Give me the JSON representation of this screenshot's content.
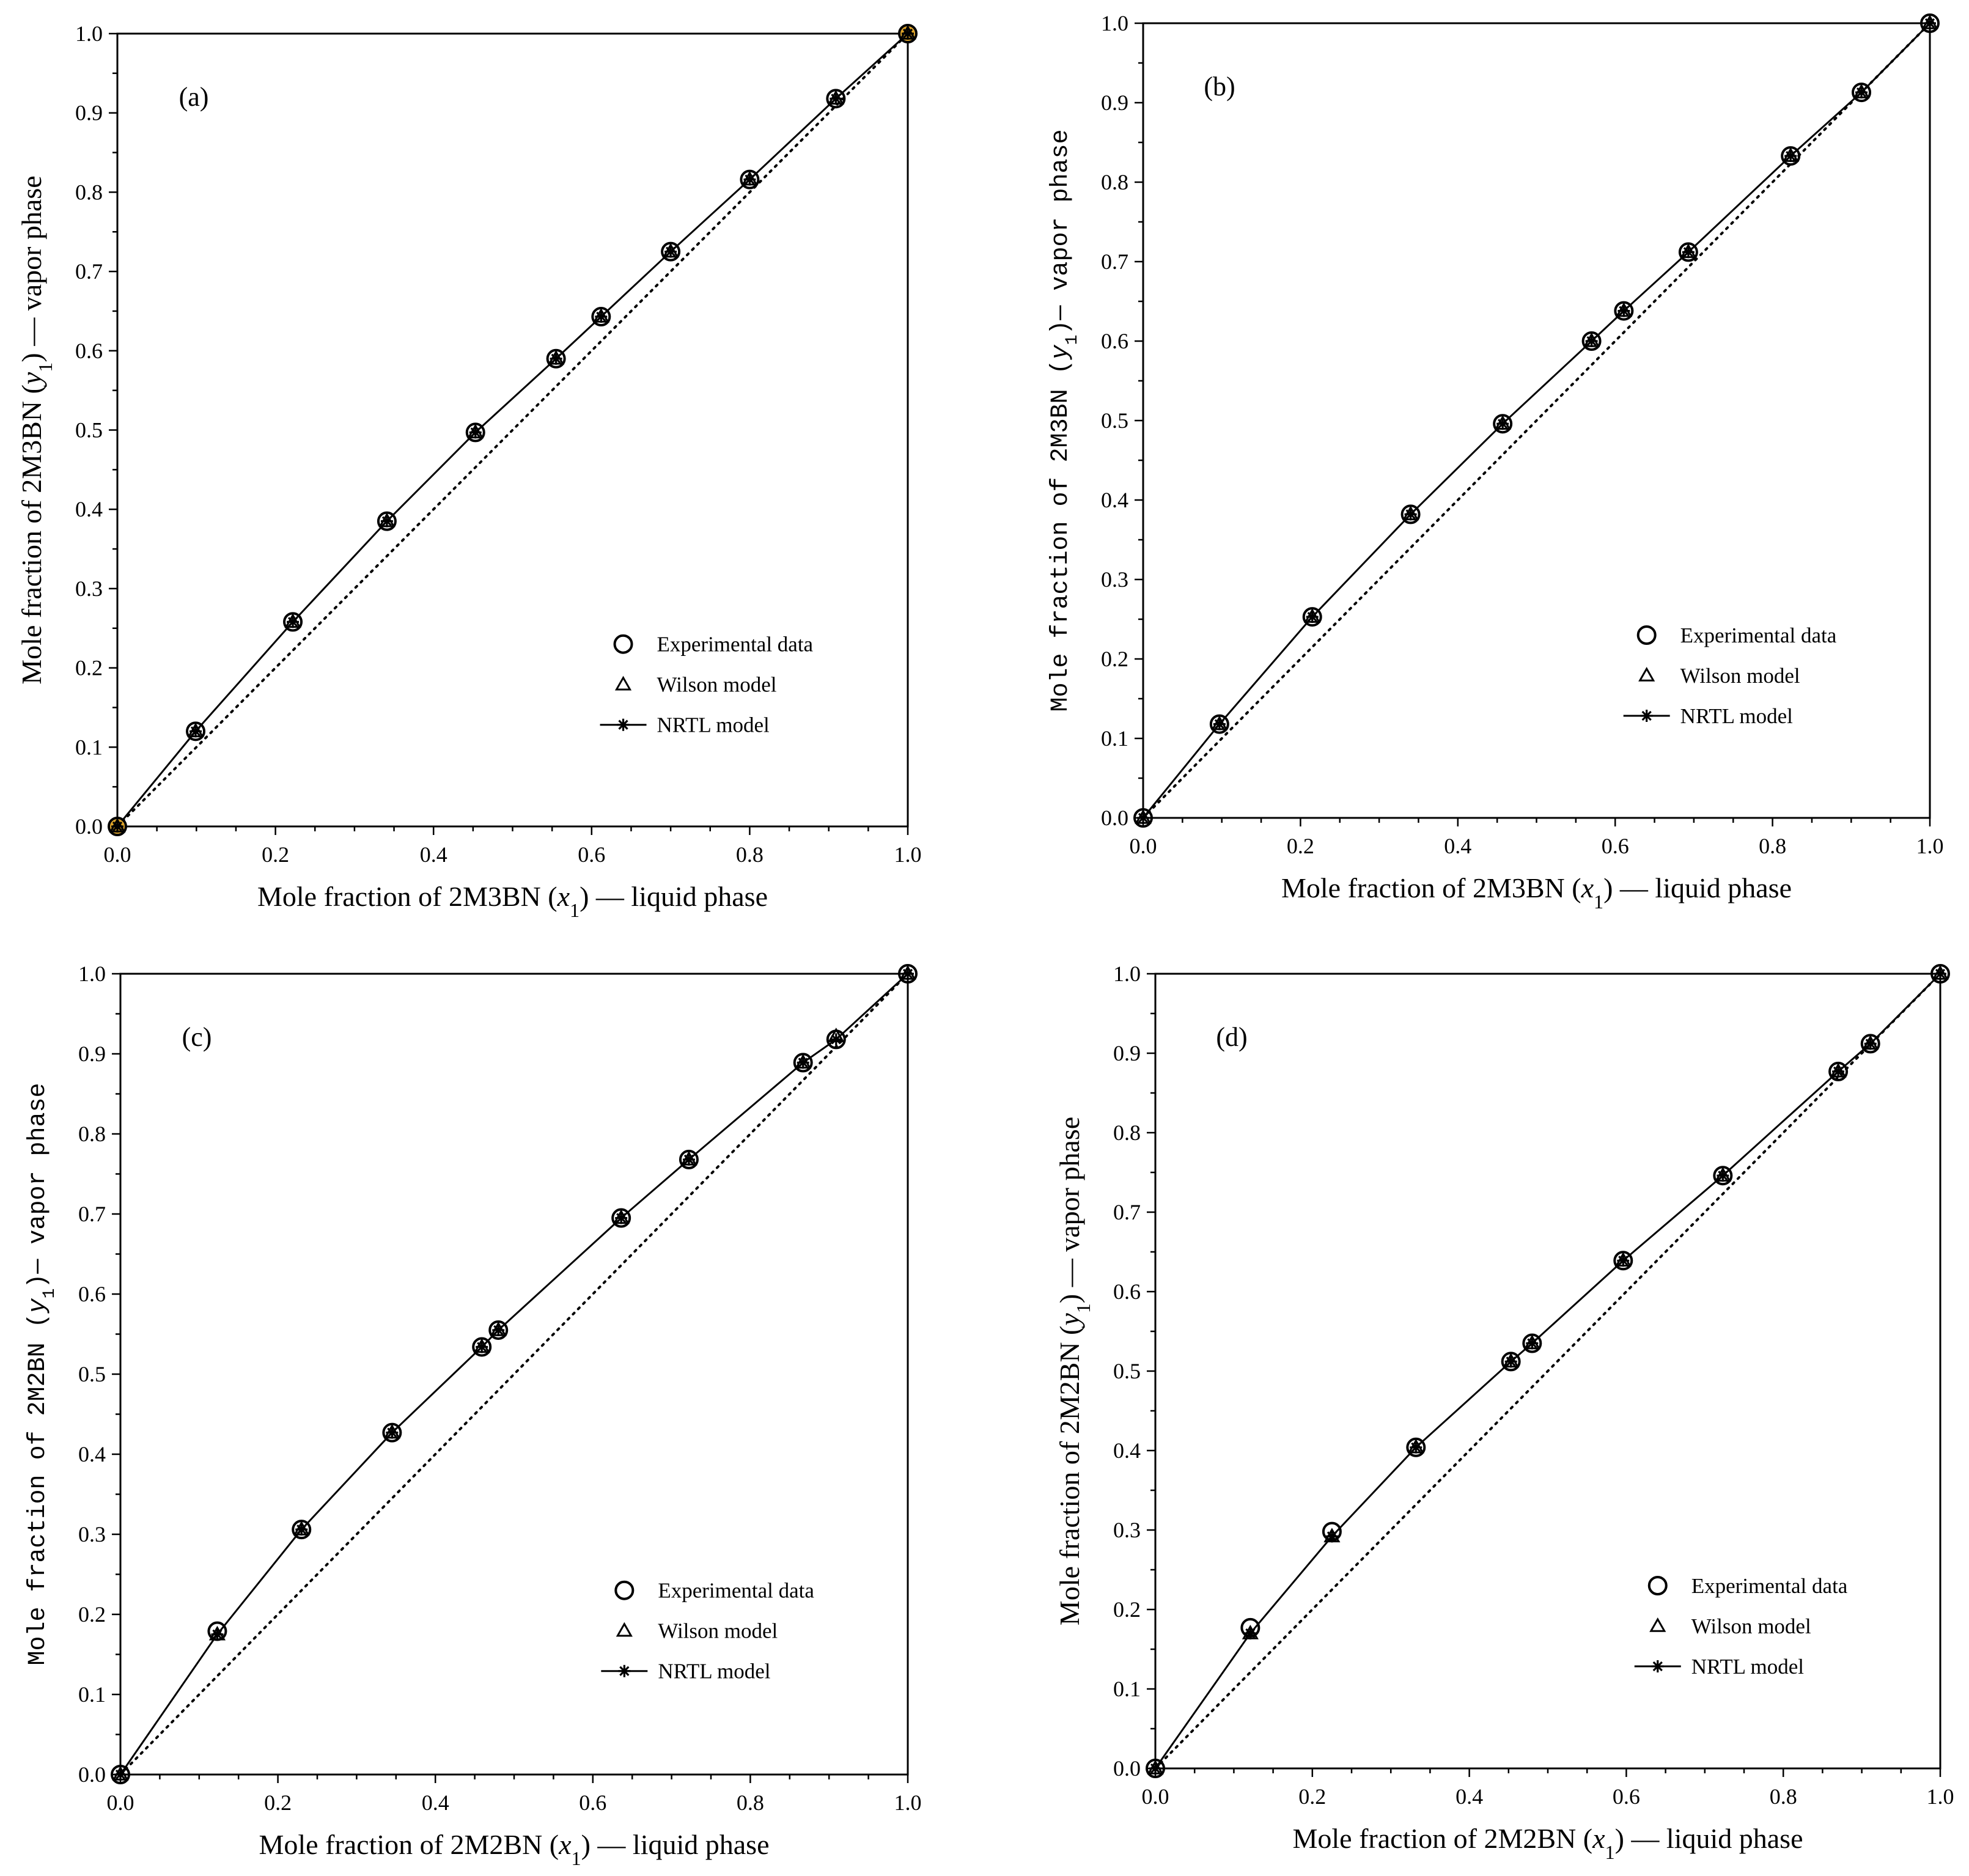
{
  "chart_data": [
    {
      "type": "scatter",
      "panel_label": "(a)",
      "title": "",
      "xlabel": {
        "prefix": "Mole fraction of 2M3BN (",
        "var": "x",
        "sub": "1",
        "suffix": ") — liquid phase"
      },
      "ylabel": {
        "prefix": "Mole fraction of 2M3BN (",
        "var": "y",
        "sub": "1",
        "suffix": ") — vapor phase",
        "mono": false
      },
      "xlim": [
        0,
        1
      ],
      "ylim": [
        0,
        1
      ],
      "xticks": [
        "0.0",
        "0.2",
        "0.4",
        "0.6",
        "0.8",
        "1.0"
      ],
      "yticks": [
        "0.0",
        "0.1",
        "0.2",
        "0.3",
        "0.4",
        "0.5",
        "0.6",
        "0.7",
        "0.8",
        "0.9",
        "1.0"
      ],
      "highlight_color": "#e0a528",
      "legend": [
        "Experimental data",
        "Wilson model",
        "NRTL model"
      ],
      "legend_position": "lower-right",
      "series": [
        {
          "name": "Experimental data",
          "x": [
            0.0,
            0.099,
            0.222,
            0.341,
            0.453,
            0.555,
            0.612,
            0.7,
            0.8,
            0.909,
            1.0
          ],
          "y": [
            0.0,
            0.12,
            0.258,
            0.385,
            0.497,
            0.59,
            0.643,
            0.725,
            0.816,
            0.918,
            1.0
          ]
        },
        {
          "name": "Wilson model",
          "x": [
            0.0,
            0.099,
            0.222,
            0.341,
            0.453,
            0.555,
            0.612,
            0.7,
            0.8,
            0.909,
            1.0
          ],
          "y": [
            0.0,
            0.12,
            0.258,
            0.385,
            0.497,
            0.59,
            0.643,
            0.725,
            0.816,
            0.918,
            1.0
          ]
        },
        {
          "name": "NRTL model",
          "x": [
            0.0,
            0.099,
            0.222,
            0.341,
            0.453,
            0.555,
            0.612,
            0.7,
            0.8,
            0.909,
            1.0
          ],
          "y": [
            0.0,
            0.12,
            0.258,
            0.385,
            0.497,
            0.59,
            0.643,
            0.725,
            0.816,
            0.918,
            1.0
          ]
        }
      ],
      "diagonal": {
        "x": [
          0,
          1
        ],
        "y": [
          0,
          1
        ],
        "style": "dotted"
      }
    },
    {
      "type": "scatter",
      "panel_label": "(b)",
      "title": "",
      "xlabel": {
        "prefix": "Mole fraction of 2M3BN (",
        "var": "x",
        "sub": "1",
        "suffix": ") — liquid phase"
      },
      "ylabel": {
        "prefix": "Mole fraction of 2M3BN (",
        "var": "y",
        "sub": "1",
        "suffix": ")— vapor phase",
        "mono": true
      },
      "xlim": [
        0,
        1
      ],
      "ylim": [
        0,
        1
      ],
      "xticks": [
        "0.0",
        "0.2",
        "0.4",
        "0.6",
        "0.8",
        "1.0"
      ],
      "yticks": [
        "0.0",
        "0.1",
        "0.2",
        "0.3",
        "0.4",
        "0.5",
        "0.6",
        "0.7",
        "0.8",
        "0.9",
        "1.0"
      ],
      "highlight_color": "",
      "legend": [
        "Experimental data",
        "Wilson model",
        "NRTL model"
      ],
      "legend_position": "lower-right",
      "series": [
        {
          "name": "Experimental data",
          "x": [
            0.0,
            0.097,
            0.215,
            0.34,
            0.457,
            0.57,
            0.611,
            0.693,
            0.823,
            0.913,
            1.0
          ],
          "y": [
            0.0,
            0.118,
            0.253,
            0.382,
            0.496,
            0.6,
            0.638,
            0.712,
            0.833,
            0.913,
            1.0
          ]
        },
        {
          "name": "Wilson model",
          "x": [
            0.0,
            0.097,
            0.215,
            0.34,
            0.457,
            0.57,
            0.611,
            0.693,
            0.823,
            0.913,
            1.0
          ],
          "y": [
            0.0,
            0.118,
            0.253,
            0.382,
            0.496,
            0.6,
            0.638,
            0.712,
            0.833,
            0.913,
            1.0
          ]
        },
        {
          "name": "NRTL model",
          "x": [
            0.0,
            0.097,
            0.215,
            0.34,
            0.457,
            0.57,
            0.611,
            0.693,
            0.823,
            0.913,
            1.0
          ],
          "y": [
            0.0,
            0.118,
            0.253,
            0.382,
            0.496,
            0.6,
            0.638,
            0.712,
            0.833,
            0.913,
            1.0
          ]
        }
      ],
      "diagonal": {
        "x": [
          0,
          1
        ],
        "y": [
          0,
          1
        ],
        "style": "dotted"
      }
    },
    {
      "type": "scatter",
      "panel_label": "(c)",
      "title": "",
      "xlabel": {
        "prefix": "Mole fraction of 2M2BN (",
        "var": "x",
        "sub": "1",
        "suffix": ") — liquid phase"
      },
      "ylabel": {
        "prefix": "Mole fraction of 2M2BN (",
        "var": "y",
        "sub": "1",
        "suffix": ")— vapor phase",
        "mono": true
      },
      "xlim": [
        0,
        1
      ],
      "ylim": [
        0,
        1
      ],
      "xticks": [
        "0.0",
        "0.2",
        "0.4",
        "0.6",
        "0.8",
        "1.0"
      ],
      "yticks": [
        "0.0",
        "0.1",
        "0.2",
        "0.3",
        "0.4",
        "0.5",
        "0.6",
        "0.7",
        "0.8",
        "0.9",
        "1.0"
      ],
      "highlight_color": "",
      "legend": [
        "Experimental data",
        "Wilson model",
        "NRTL model"
      ],
      "legend_position": "lower-right",
      "series": [
        {
          "name": "Experimental data",
          "x": [
            0.0,
            0.123,
            0.23,
            0.345,
            0.459,
            0.48,
            0.636,
            0.722,
            0.867,
            0.909,
            1.0
          ],
          "y": [
            0.0,
            0.179,
            0.306,
            0.427,
            0.534,
            0.555,
            0.695,
            0.768,
            0.889,
            0.918,
            1.0
          ]
        },
        {
          "name": "Wilson model",
          "x": [
            0.0,
            0.123,
            0.23,
            0.345,
            0.459,
            0.48,
            0.636,
            0.722,
            0.867,
            0.909,
            1.0
          ],
          "y": [
            0.0,
            0.175,
            0.306,
            0.427,
            0.534,
            0.555,
            0.695,
            0.768,
            0.889,
            0.922,
            1.0
          ]
        },
        {
          "name": "NRTL model",
          "x": [
            0.0,
            0.123,
            0.23,
            0.345,
            0.459,
            0.48,
            0.636,
            0.722,
            0.867,
            0.909,
            1.0
          ],
          "y": [
            0.0,
            0.175,
            0.306,
            0.427,
            0.534,
            0.555,
            0.695,
            0.768,
            0.889,
            0.918,
            1.0
          ]
        }
      ],
      "diagonal": {
        "x": [
          0,
          1
        ],
        "y": [
          0,
          1
        ],
        "style": "dotted"
      }
    },
    {
      "type": "scatter",
      "panel_label": "(d)",
      "title": "",
      "xlabel": {
        "prefix": "Mole fraction of 2M2BN (",
        "var": "x",
        "sub": "1",
        "suffix": ") — liquid phase"
      },
      "ylabel": {
        "prefix": "Mole fraction of 2M2BN (",
        "var": "y",
        "sub": "1",
        "suffix": ") — vapor phase",
        "mono": false
      },
      "xlim": [
        0,
        1
      ],
      "ylim": [
        0,
        1
      ],
      "xticks": [
        "0.0",
        "0.2",
        "0.4",
        "0.6",
        "0.8",
        "1.0"
      ],
      "yticks": [
        "0.0",
        "0.1",
        "0.2",
        "0.3",
        "0.4",
        "0.5",
        "0.6",
        "0.7",
        "0.8",
        "0.9",
        "1.0"
      ],
      "highlight_color": "",
      "legend": [
        "Experimental data",
        "Wilson model",
        "NRTL model"
      ],
      "legend_position": "lower-right",
      "series": [
        {
          "name": "Experimental data",
          "x": [
            0.0,
            0.121,
            0.225,
            0.332,
            0.453,
            0.48,
            0.596,
            0.723,
            0.87,
            0.911,
            1.0
          ],
          "y": [
            0.0,
            0.177,
            0.298,
            0.404,
            0.512,
            0.535,
            0.639,
            0.746,
            0.877,
            0.912,
            1.0
          ]
        },
        {
          "name": "Wilson model",
          "x": [
            0.0,
            0.121,
            0.225,
            0.332,
            0.453,
            0.48,
            0.596,
            0.723,
            0.87,
            0.911,
            1.0
          ],
          "y": [
            0.0,
            0.17,
            0.292,
            0.404,
            0.512,
            0.535,
            0.639,
            0.746,
            0.877,
            0.912,
            1.0
          ]
        },
        {
          "name": "NRTL model",
          "x": [
            0.0,
            0.121,
            0.225,
            0.332,
            0.453,
            0.48,
            0.596,
            0.723,
            0.87,
            0.911,
            1.0
          ],
          "y": [
            0.0,
            0.17,
            0.292,
            0.404,
            0.512,
            0.535,
            0.639,
            0.746,
            0.877,
            0.912,
            1.0
          ]
        }
      ],
      "diagonal": {
        "x": [
          0,
          1
        ],
        "y": [
          0,
          1
        ],
        "style": "dotted"
      }
    }
  ]
}
